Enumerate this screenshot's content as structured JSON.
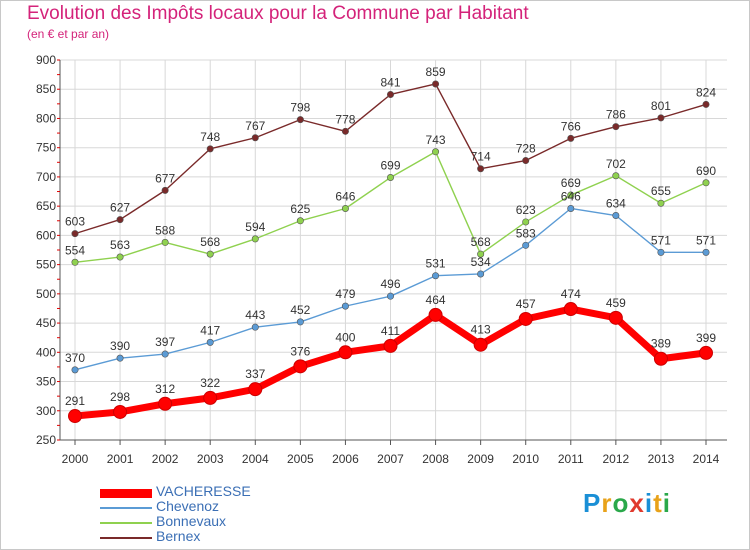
{
  "title": "Evolution des Impôts locaux pour la Commune par Habitant",
  "subtitle": "(en € et par an)",
  "logo": {
    "letters": [
      "P",
      "r",
      "o",
      "x",
      "i",
      "t",
      "i"
    ],
    "colors": [
      "#1a8fd6",
      "#e8a21a",
      "#2aa84a",
      "#e03a2e",
      "#1a8fd6",
      "#e8a21a",
      "#2aa84a"
    ]
  },
  "colors": {
    "grid": "#d8d8d8",
    "axis": "#555555",
    "tick_label": "#333333",
    "red_axis_ticks": "#e00000"
  },
  "chart_data": {
    "type": "line",
    "title": "Evolution des Impôts locaux pour la Commune par Habitant",
    "subtitle": "(en € et par an)",
    "x": [
      "2000",
      "2001",
      "2002",
      "2003",
      "2004",
      "2005",
      "2006",
      "2007",
      "2008",
      "2009",
      "2010",
      "2011",
      "2012",
      "2013",
      "2014"
    ],
    "ylim": [
      250,
      900
    ],
    "yticks": [
      250,
      300,
      350,
      400,
      450,
      500,
      550,
      600,
      650,
      700,
      750,
      800,
      850,
      900
    ],
    "grid": true,
    "legend_placement": "bottom-left",
    "series": [
      {
        "name": "VACHERESSE",
        "color": "#ff0000",
        "values": [
          291,
          298,
          312,
          322,
          337,
          376,
          400,
          411,
          464,
          413,
          457,
          474,
          459,
          389,
          399
        ]
      },
      {
        "name": "Chevenoz",
        "color": "#5b9bd5",
        "values": [
          370,
          390,
          397,
          417,
          443,
          452,
          479,
          496,
          531,
          534,
          583,
          646,
          634,
          571,
          571
        ]
      },
      {
        "name": "Bonnevaux",
        "color": "#8fd14f",
        "values": [
          554,
          563,
          588,
          568,
          594,
          625,
          646,
          699,
          743,
          568,
          623,
          669,
          702,
          655,
          690
        ]
      },
      {
        "name": "Bernex",
        "color": "#7a2a2a",
        "values": [
          603,
          627,
          677,
          748,
          767,
          798,
          778,
          841,
          859,
          714,
          728,
          766,
          786,
          801,
          824
        ]
      }
    ]
  }
}
